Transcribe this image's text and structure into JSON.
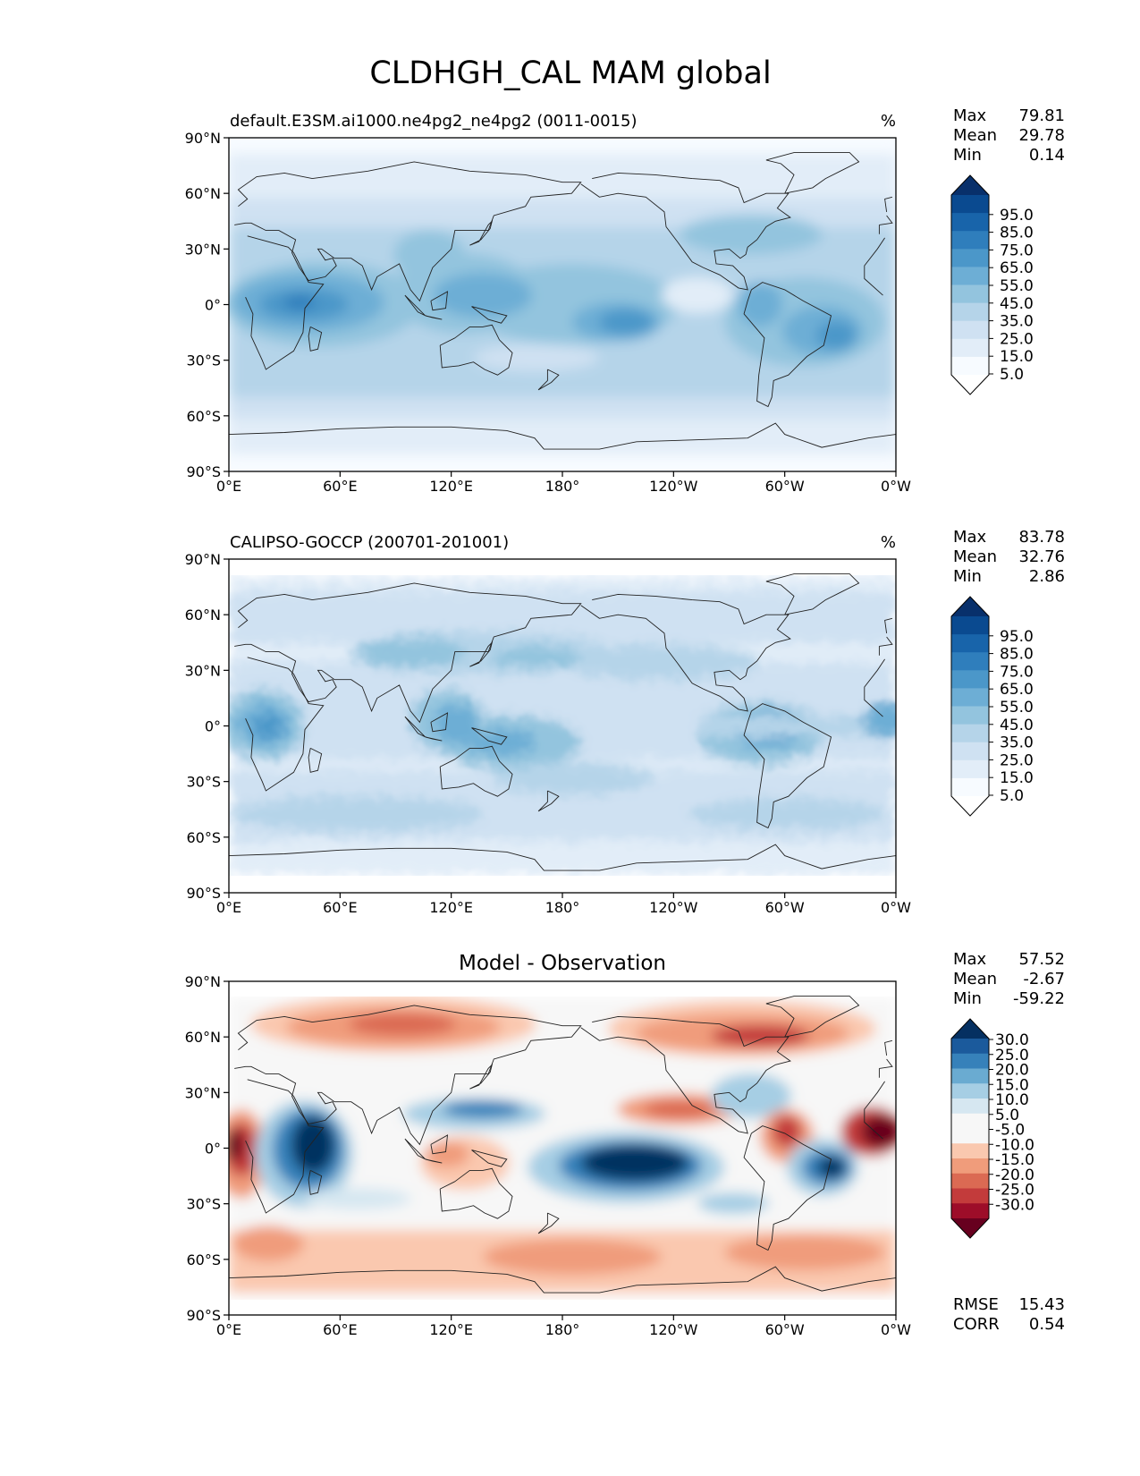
{
  "figure_title": "CLDHGH_CAL MAM global",
  "colors": {
    "blues": [
      "#f7fbff",
      "#e2edf8",
      "#cfe1f2",
      "#b5d4e9",
      "#93c4de",
      "#6daed5",
      "#4b97c9",
      "#2f7ebc",
      "#1864aa",
      "#0a4a90",
      "#08306b"
    ],
    "diff": [
      "#67001f",
      "#9d0d29",
      "#c33b3b",
      "#db6a53",
      "#f09c7b",
      "#fac8af",
      "#f7f7f7",
      "#f7f7f7",
      "#d6e7f1",
      "#a6cee4",
      "#6aabd1",
      "#3681ba",
      "#1b5a9c",
      "#053061"
    ]
  },
  "panels": [
    {
      "title_left": "default.E3SM.ai1000.ne4pg2_ne4pg2 (0011-0015)",
      "title_center": "",
      "units": "%",
      "stats": [
        {
          "label": "Max",
          "value": "79.81"
        },
        {
          "label": "Mean",
          "value": "29.78"
        },
        {
          "label": "Min",
          "value": "0.14"
        }
      ],
      "colorbar_labels": [
        "95.0",
        "85.0",
        "75.0",
        "65.0",
        "55.0",
        "45.0",
        "35.0",
        "25.0",
        "15.0",
        "5.0"
      ],
      "footer_stats": []
    },
    {
      "title_left": "CALIPSO-GOCCP (200701-201001)",
      "title_center": "",
      "units": "%",
      "stats": [
        {
          "label": "Max",
          "value": "83.78"
        },
        {
          "label": "Mean",
          "value": "32.76"
        },
        {
          "label": "Min",
          "value": "2.86"
        }
      ],
      "colorbar_labels": [
        "95.0",
        "85.0",
        "75.0",
        "65.0",
        "55.0",
        "45.0",
        "35.0",
        "25.0",
        "15.0",
        "5.0"
      ],
      "footer_stats": []
    },
    {
      "title_left": "",
      "title_center": "Model - Observation",
      "units": "",
      "stats": [
        {
          "label": "Max",
          "value": "57.52"
        },
        {
          "label": "Mean",
          "value": "-2.67"
        },
        {
          "label": "Min",
          "value": "-59.22"
        }
      ],
      "colorbar_labels": [
        "30.0",
        "25.0",
        "20.0",
        "15.0",
        "10.0",
        "5.0",
        "-5.0",
        "-10.0",
        "-15.0",
        "-20.0",
        "-25.0",
        "-30.0"
      ],
      "footer_stats": [
        {
          "label": "RMSE",
          "value": "15.43"
        },
        {
          "label": "CORR",
          "value": "0.54"
        }
      ]
    }
  ],
  "axes": {
    "lat_ticks": [
      "90°N",
      "60°N",
      "30°N",
      "0°",
      "30°S",
      "60°S",
      "90°S"
    ],
    "lon_ticks": [
      "0°E",
      "60°E",
      "120°E",
      "180°",
      "120°W",
      "60°W",
      "0°W"
    ]
  },
  "chart_data": [
    {
      "type": "heatmap",
      "title": "default.E3SM.ai1000.ne4pg2_ne4pg2 (0011-0015)",
      "units": "%",
      "colormap": "Blues",
      "levels": [
        0,
        5,
        15,
        25,
        35,
        45,
        55,
        65,
        75,
        85,
        95,
        100
      ],
      "extend": "both",
      "lon_range": [
        0,
        360
      ],
      "lat_range": [
        -90,
        90
      ],
      "features": [
        {
          "name": "Africa/Indian Ocean ITCZ",
          "lon": [
            5,
            75
          ],
          "lat": [
            -15,
            10
          ],
          "value": 65
        },
        {
          "name": "Maritime Continent / W Pacific",
          "lon": [
            95,
            175
          ],
          "lat": [
            -10,
            20
          ],
          "value": 55
        },
        {
          "name": "Central Pacific max",
          "lon": [
            185,
            230
          ],
          "lat": [
            -20,
            -5
          ],
          "value": 70
        },
        {
          "name": "S America / Atlantic",
          "lon": [
            285,
            345
          ],
          "lat": [
            -25,
            5
          ],
          "value": 65
        },
        {
          "name": "Subtropical dry zones",
          "value": 15
        },
        {
          "name": "Mid-latitude storm tracks",
          "value": 40
        },
        {
          "name": "Polar regions",
          "value": 5
        }
      ],
      "stats": {
        "max": 79.81,
        "mean": 29.78,
        "min": 0.14
      }
    },
    {
      "type": "heatmap",
      "title": "CALIPSO-GOCCP (200701-201001)",
      "units": "%",
      "colormap": "Blues",
      "levels": [
        0,
        5,
        15,
        25,
        35,
        45,
        55,
        65,
        75,
        85,
        95,
        100
      ],
      "extend": "both",
      "lon_range": [
        0,
        360
      ],
      "lat_range": [
        -82,
        82
      ],
      "features": [
        {
          "name": "Africa",
          "lon": [
            5,
            40
          ],
          "lat": [
            -10,
            5
          ],
          "value": 65
        },
        {
          "name": "Maritime Continent",
          "lon": [
            95,
            160
          ],
          "lat": [
            -10,
            10
          ],
          "value": 65
        },
        {
          "name": "Asian subtropical jet",
          "lon": [
            60,
            180
          ],
          "lat": [
            25,
            45
          ],
          "value": 50
        },
        {
          "name": "Amazon",
          "lon": [
            285,
            320
          ],
          "lat": [
            -15,
            5
          ],
          "value": 65
        },
        {
          "name": "Equatorial Atlantic",
          "lon": [
            320,
            360
          ],
          "lat": [
            -5,
            5
          ],
          "value": 50
        }
      ],
      "stats": {
        "max": 83.78,
        "mean": 32.76,
        "min": 2.86
      }
    },
    {
      "type": "heatmap",
      "title": "Model - Observation",
      "colormap": "RdBu_r",
      "levels": [
        -35,
        -30,
        -25,
        -20,
        -15,
        -10,
        -5,
        5,
        10,
        15,
        20,
        25,
        30,
        35
      ],
      "extend": "both",
      "lon_range": [
        0,
        360
      ],
      "lat_range": [
        -82,
        82
      ],
      "features": [
        {
          "name": "East Africa / W Indian Ocean",
          "lon": [
            25,
            65
          ],
          "lat": [
            -15,
            10
          ],
          "value": 35
        },
        {
          "name": "Central Pacific",
          "lon": [
            190,
            240
          ],
          "lat": [
            -20,
            0
          ],
          "value": 35
        },
        {
          "name": "Tropical S Atlantic",
          "lon": [
            315,
            345
          ],
          "lat": [
            -25,
            -5
          ],
          "value": 30
        },
        {
          "name": "W Pacific subtropics",
          "lon": [
            110,
            170
          ],
          "lat": [
            10,
            25
          ],
          "value": 15
        },
        {
          "name": "Equatorial Atlantic",
          "lon": [
            340,
            360
          ],
          "lat": [
            -5,
            10
          ],
          "value": -35
        },
        {
          "name": "Equatorial Africa west",
          "lon": [
            0,
            15
          ],
          "lat": [
            -15,
            5
          ],
          "value": -35
        },
        {
          "name": "N Asia",
          "lon": [
            40,
            130
          ],
          "lat": [
            55,
            75
          ],
          "value": -25
        },
        {
          "name": "N America / Arctic",
          "lon": [
            220,
            330
          ],
          "lat": [
            55,
            75
          ],
          "value": -25
        },
        {
          "name": "Southern Ocean",
          "lon": [
            0,
            360
          ],
          "lat": [
            -70,
            -50
          ],
          "value": -15
        }
      ],
      "stats": {
        "max": 57.52,
        "mean": -2.67,
        "min": -59.22,
        "rmse": 15.43,
        "corr": 0.54
      }
    }
  ]
}
